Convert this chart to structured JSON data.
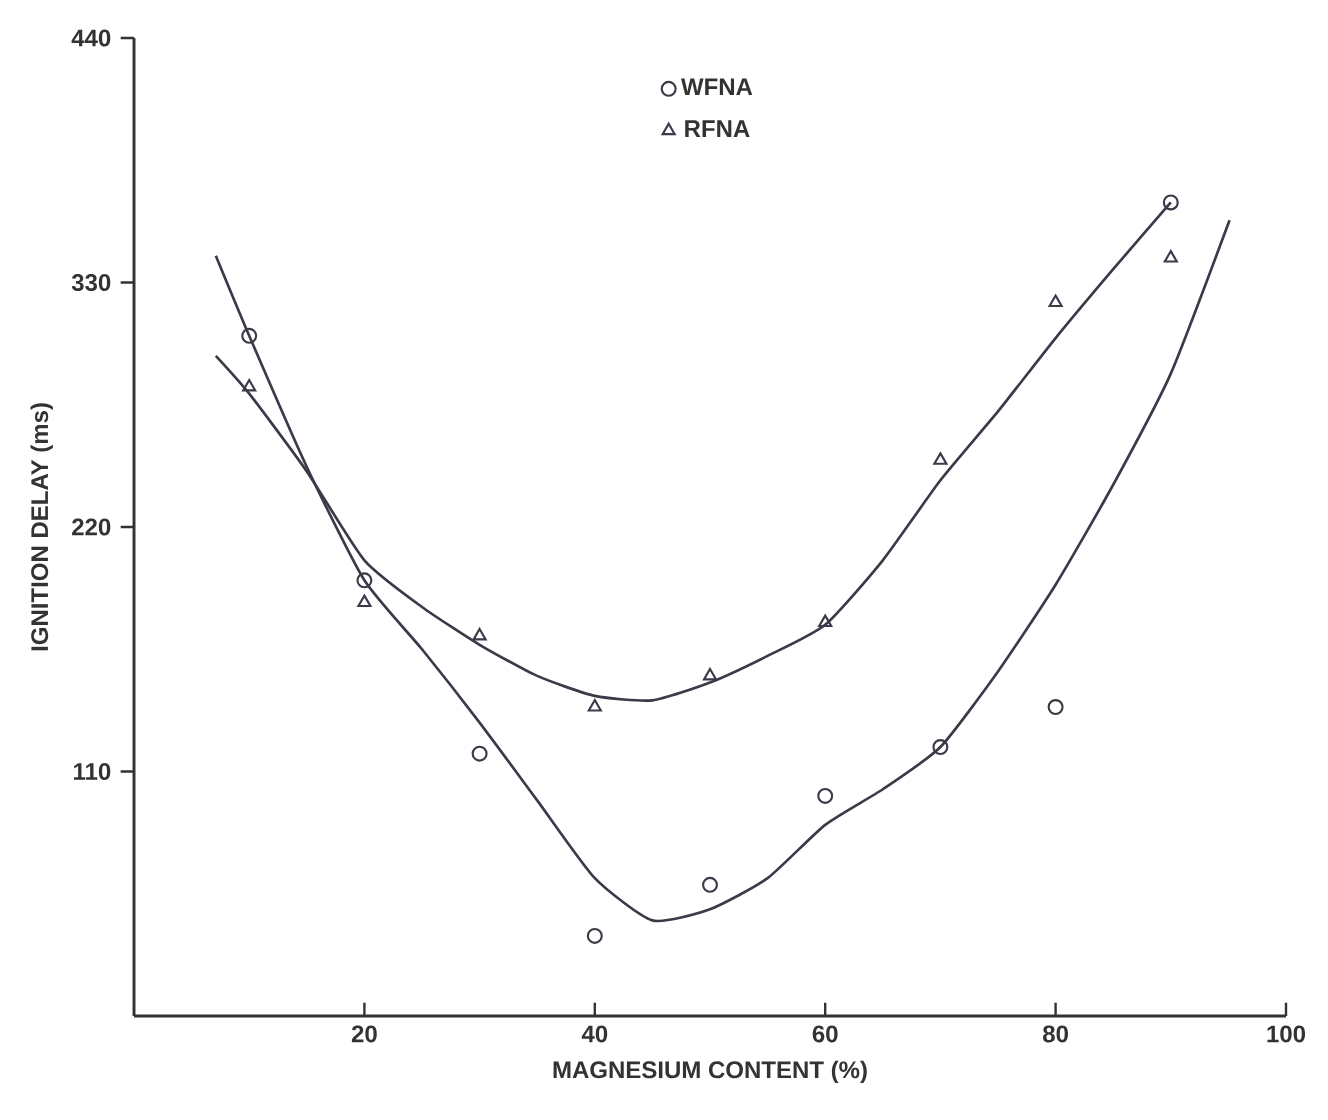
{
  "chart_data": {
    "type": "scatter",
    "xlabel": "MAGNESIUM CONTENT  (%)",
    "ylabel": "IGNITION DELAY (ms)",
    "xlim": [
      0,
      100
    ],
    "ylim": [
      0,
      440
    ],
    "xticks": [
      20,
      40,
      60,
      80,
      100
    ],
    "yticks": [
      110,
      220,
      330,
      440
    ],
    "grid": false,
    "legend": "top",
    "series": [
      {
        "name": "WFNA",
        "marker": "circle",
        "color": "#3a3a48",
        "x": [
          10,
          20,
          30,
          40,
          50,
          60,
          70,
          80,
          90
        ],
        "values": [
          306,
          196,
          118,
          36,
          59,
          99,
          121,
          139,
          366
        ]
      },
      {
        "name": "RFNA",
        "marker": "triangle",
        "color": "#3a3a48",
        "x": [
          10,
          20,
          30,
          40,
          50,
          60,
          70,
          80,
          90
        ],
        "values": [
          283,
          186,
          171,
          139,
          153,
          177,
          250,
          321,
          341
        ]
      },
      {
        "type": "line",
        "color": "#3a3a48",
        "x": [
          7.1,
          10,
          15,
          20,
          25,
          30,
          35,
          40,
          45,
          50,
          55,
          60,
          65,
          70,
          75,
          80,
          85,
          90,
          95.1
        ],
        "values": [
          342,
          306,
          247,
          196,
          165,
          132,
          97,
          62,
          43,
          48,
          62,
          86,
          102,
          121,
          155,
          194,
          239,
          289,
          358
        ]
      },
      {
        "type": "line",
        "color": "#3a3a48",
        "x": [
          7.1,
          10,
          15,
          20,
          25,
          30,
          35,
          40,
          45,
          50,
          55,
          60,
          65,
          70,
          75,
          80,
          85,
          90
        ],
        "values": [
          297,
          280,
          245,
          205,
          184,
          167,
          153,
          144,
          142,
          150,
          162,
          176,
          205,
          241,
          272,
          305,
          336,
          366
        ]
      }
    ]
  }
}
